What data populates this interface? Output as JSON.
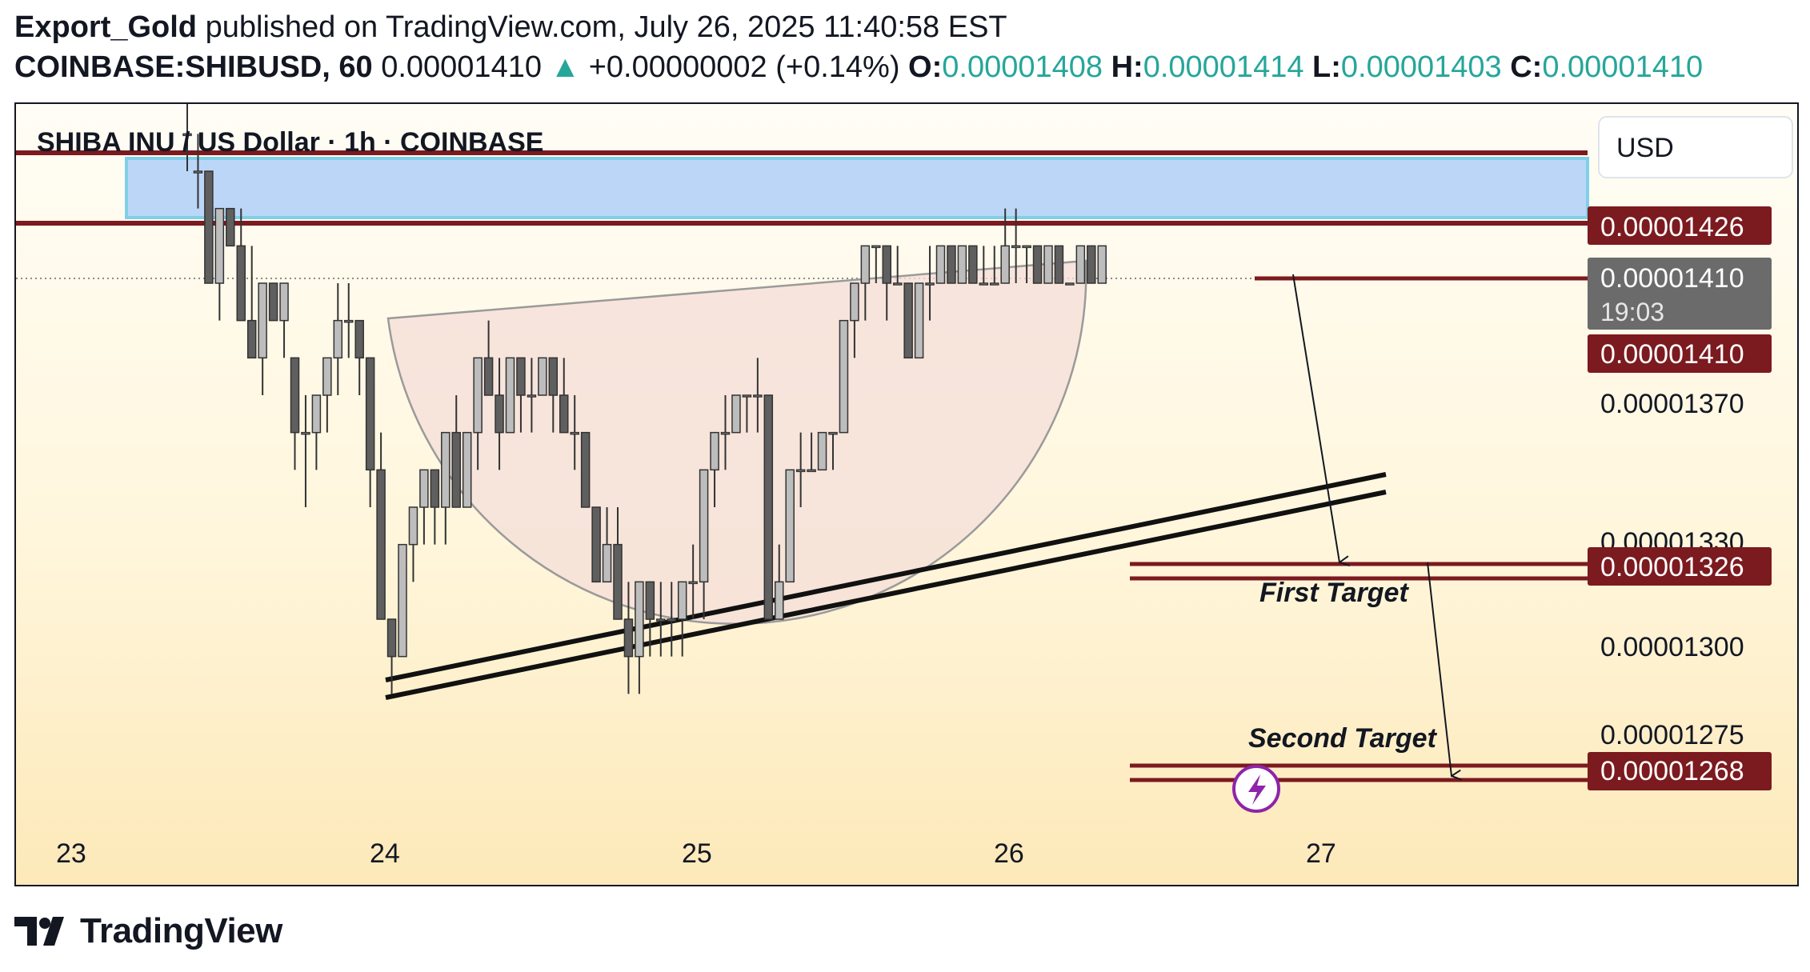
{
  "header": {
    "author": "Export_Gold",
    "published_text": "published on TradingView.com, July 26, 2025 11:40:58 EST",
    "symbol": "COINBASE:SHIBUSD, 60",
    "last_price": "0.00001410",
    "change": "+0.00000002 (+0.14%)",
    "open_label": "O:",
    "open": "0.00001408",
    "high_label": "H:",
    "high": "0.00001414",
    "low_label": "L:",
    "low": "0.00001403",
    "close_label": "C:",
    "close": "0.00001410"
  },
  "chart": {
    "title": "SHIBA INU / US Dollar · 1h · COINBASE",
    "currency_button": "USD",
    "price_labels": [
      {
        "text": "0.00001426",
        "value": 1.426e-05,
        "style": "dark-red"
      },
      {
        "text": "0.00001410",
        "value": 1.41e-05,
        "style": "gray",
        "sub": "19:03"
      },
      {
        "text": "0.00001410",
        "value": 1.41e-05,
        "style": "dark-red"
      },
      {
        "text": "0.00001326",
        "value": 1.326e-05,
        "style": "dark-red"
      },
      {
        "text": "0.00001268",
        "value": 1.268e-05,
        "style": "dark-red"
      }
    ],
    "axis_ticks": [
      "0.00001370",
      "0.00001300",
      "0.00001275"
    ],
    "x_ticks": [
      "23",
      "24",
      "25",
      "26",
      "27"
    ],
    "annotations": {
      "first_target": "First Target",
      "second_target": "Second Target"
    },
    "colors": {
      "up": "#bdbdbd",
      "down": "#5f5f5f",
      "level": "#7b1a1f",
      "zone": "#b9d4f5",
      "bowl": "#f4dfd9"
    }
  },
  "chart_data": {
    "type": "candlestick",
    "title": "SHIBA INU / US Dollar · 1h · COINBASE",
    "x_ticks": [
      "23",
      "24",
      "25",
      "26",
      "27"
    ],
    "ylim": [
      1.238e-05,
      1.448e-05
    ],
    "resistance_zone": [
      1.426e-05,
      1.442e-05
    ],
    "targets": [
      {
        "name": "First Target",
        "value": 1.326e-05
      },
      {
        "name": "Second Target",
        "value": 1.268e-05
      }
    ],
    "candles": [
      [
        1.44e-05,
        1.45e-05,
        1.43e-05,
        1.44e-05
      ],
      [
        1.43e-05,
        1.44e-05,
        1.42e-05,
        1.43e-05
      ],
      [
        1.43e-05,
        1.43e-05,
        1.4e-05,
        1.4e-05
      ],
      [
        1.4e-05,
        1.42e-05,
        1.39e-05,
        1.42e-05
      ],
      [
        1.42e-05,
        1.42e-05,
        1.41e-05,
        1.41e-05
      ],
      [
        1.41e-05,
        1.42e-05,
        1.39e-05,
        1.39e-05
      ],
      [
        1.39e-05,
        1.41e-05,
        1.38e-05,
        1.38e-05
      ],
      [
        1.38e-05,
        1.4e-05,
        1.37e-05,
        1.4e-05
      ],
      [
        1.4e-05,
        1.4e-05,
        1.39e-05,
        1.39e-05
      ],
      [
        1.39e-05,
        1.4e-05,
        1.38e-05,
        1.4e-05
      ],
      [
        1.38e-05,
        1.38e-05,
        1.35e-05,
        1.36e-05
      ],
      [
        1.36e-05,
        1.37e-05,
        1.34e-05,
        1.36e-05
      ],
      [
        1.36e-05,
        1.37e-05,
        1.35e-05,
        1.37e-05
      ],
      [
        1.37e-05,
        1.38e-05,
        1.36e-05,
        1.38e-05
      ],
      [
        1.38e-05,
        1.4e-05,
        1.37e-05,
        1.39e-05
      ],
      [
        1.39e-05,
        1.4e-05,
        1.38e-05,
        1.39e-05
      ],
      [
        1.39e-05,
        1.39e-05,
        1.37e-05,
        1.38e-05
      ],
      [
        1.38e-05,
        1.38e-05,
        1.34e-05,
        1.35e-05
      ],
      [
        1.35e-05,
        1.36e-05,
        1.31e-05,
        1.31e-05
      ],
      [
        1.31e-05,
        1.31e-05,
        1.29e-05,
        1.3e-05
      ],
      [
        1.3e-05,
        1.33e-05,
        1.3e-05,
        1.33e-05
      ],
      [
        1.33e-05,
        1.34e-05,
        1.32e-05,
        1.34e-05
      ],
      [
        1.34e-05,
        1.35e-05,
        1.33e-05,
        1.35e-05
      ],
      [
        1.35e-05,
        1.35e-05,
        1.33e-05,
        1.34e-05
      ],
      [
        1.34e-05,
        1.36e-05,
        1.33e-05,
        1.36e-05
      ],
      [
        1.36e-05,
        1.37e-05,
        1.34e-05,
        1.34e-05
      ],
      [
        1.34e-05,
        1.36e-05,
        1.34e-05,
        1.36e-05
      ],
      [
        1.36e-05,
        1.38e-05,
        1.35e-05,
        1.38e-05
      ],
      [
        1.38e-05,
        1.39e-05,
        1.37e-05,
        1.37e-05
      ],
      [
        1.37e-05,
        1.38e-05,
        1.35e-05,
        1.36e-05
      ],
      [
        1.36e-05,
        1.38e-05,
        1.36e-05,
        1.38e-05
      ],
      [
        1.38e-05,
        1.38e-05,
        1.36e-05,
        1.37e-05
      ],
      [
        1.37e-05,
        1.38e-05,
        1.36e-05,
        1.37e-05
      ],
      [
        1.37e-05,
        1.38e-05,
        1.37e-05,
        1.38e-05
      ],
      [
        1.38e-05,
        1.38e-05,
        1.36e-05,
        1.37e-05
      ],
      [
        1.37e-05,
        1.38e-05,
        1.36e-05,
        1.36e-05
      ],
      [
        1.36e-05,
        1.37e-05,
        1.35e-05,
        1.36e-05
      ],
      [
        1.36e-05,
        1.36e-05,
        1.34e-05,
        1.34e-05
      ],
      [
        1.34e-05,
        1.34e-05,
        1.32e-05,
        1.32e-05
      ],
      [
        1.32e-05,
        1.34e-05,
        1.32e-05,
        1.33e-05
      ],
      [
        1.33e-05,
        1.34e-05,
        1.31e-05,
        1.31e-05
      ],
      [
        1.31e-05,
        1.32e-05,
        1.29e-05,
        1.3e-05
      ],
      [
        1.3e-05,
        1.32e-05,
        1.29e-05,
        1.32e-05
      ],
      [
        1.32e-05,
        1.32e-05,
        1.3e-05,
        1.31e-05
      ],
      [
        1.31e-05,
        1.32e-05,
        1.3e-05,
        1.31e-05
      ],
      [
        1.31e-05,
        1.32e-05,
        1.3e-05,
        1.31e-05
      ],
      [
        1.31e-05,
        1.32e-05,
        1.3e-05,
        1.32e-05
      ],
      [
        1.32e-05,
        1.33e-05,
        1.31e-05,
        1.32e-05
      ],
      [
        1.32e-05,
        1.35e-05,
        1.31e-05,
        1.35e-05
      ],
      [
        1.35e-05,
        1.36e-05,
        1.34e-05,
        1.36e-05
      ],
      [
        1.36e-05,
        1.37e-05,
        1.35e-05,
        1.36e-05
      ],
      [
        1.36e-05,
        1.37e-05,
        1.36e-05,
        1.37e-05
      ],
      [
        1.37e-05,
        1.37e-05,
        1.36e-05,
        1.37e-05
      ],
      [
        1.37e-05,
        1.38e-05,
        1.36e-05,
        1.37e-05
      ],
      [
        1.37e-05,
        1.37e-05,
        1.31e-05,
        1.31e-05
      ],
      [
        1.31e-05,
        1.33e-05,
        1.31e-05,
        1.32e-05
      ],
      [
        1.32e-05,
        1.35e-05,
        1.32e-05,
        1.35e-05
      ],
      [
        1.35e-05,
        1.36e-05,
        1.34e-05,
        1.35e-05
      ],
      [
        1.35e-05,
        1.36e-05,
        1.35e-05,
        1.35e-05
      ],
      [
        1.35e-05,
        1.36e-05,
        1.35e-05,
        1.36e-05
      ],
      [
        1.36e-05,
        1.36e-05,
        1.35e-05,
        1.36e-05
      ],
      [
        1.36e-05,
        1.39e-05,
        1.36e-05,
        1.39e-05
      ],
      [
        1.39e-05,
        1.4e-05,
        1.38e-05,
        1.4e-05
      ],
      [
        1.4e-05,
        1.41e-05,
        1.39e-05,
        1.41e-05
      ],
      [
        1.41e-05,
        1.41e-05,
        1.4e-05,
        1.41e-05
      ],
      [
        1.41e-05,
        1.41e-05,
        1.39e-05,
        1.4e-05
      ],
      [
        1.4e-05,
        1.41e-05,
        1.4e-05,
        1.4e-05
      ],
      [
        1.4e-05,
        1.4e-05,
        1.38e-05,
        1.38e-05
      ],
      [
        1.38e-05,
        1.4e-05,
        1.38e-05,
        1.4e-05
      ],
      [
        1.4e-05,
        1.41e-05,
        1.39e-05,
        1.4e-05
      ],
      [
        1.4e-05,
        1.41e-05,
        1.4e-05,
        1.41e-05
      ],
      [
        1.41e-05,
        1.41e-05,
        1.4e-05,
        1.4e-05
      ],
      [
        1.4e-05,
        1.41e-05,
        1.4e-05,
        1.41e-05
      ],
      [
        1.41e-05,
        1.41e-05,
        1.4e-05,
        1.4e-05
      ],
      [
        1.4e-05,
        1.41e-05,
        1.4e-05,
        1.4e-05
      ],
      [
        1.4e-05,
        1.41e-05,
        1.4e-05,
        1.4e-05
      ],
      [
        1.4e-05,
        1.42e-05,
        1.4e-05,
        1.41e-05
      ],
      [
        1.41e-05,
        1.42e-05,
        1.4e-05,
        1.41e-05
      ],
      [
        1.41e-05,
        1.41e-05,
        1.4e-05,
        1.41e-05
      ],
      [
        1.41e-05,
        1.41e-05,
        1.4e-05,
        1.4e-05
      ],
      [
        1.4e-05,
        1.41e-05,
        1.4e-05,
        1.41e-05
      ],
      [
        1.41e-05,
        1.41e-05,
        1.4e-05,
        1.4e-05
      ],
      [
        1.4e-05,
        1.4e-05,
        1.4e-05,
        1.4e-05
      ],
      [
        1.4e-05,
        1.41e-05,
        1.4e-05,
        1.41e-05
      ],
      [
        1.41e-05,
        1.41e-05,
        1.4e-05,
        1.4e-05
      ],
      [
        1.4e-05,
        1.41e-05,
        1.4e-05,
        1.41e-05
      ]
    ]
  },
  "footer": {
    "brand": "TradingView"
  }
}
